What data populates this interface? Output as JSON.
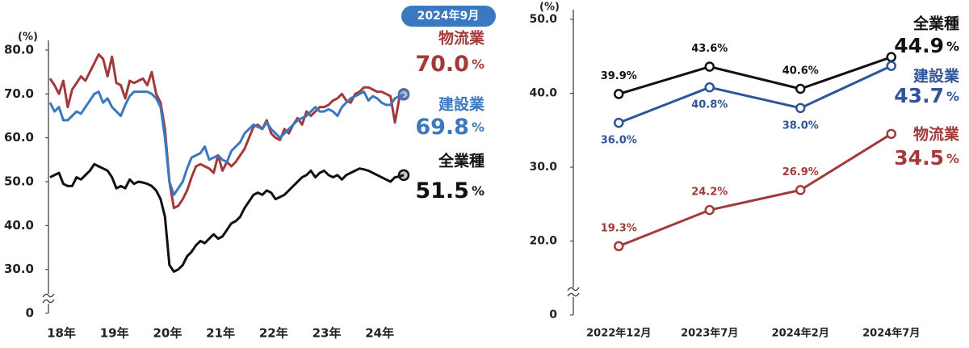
{
  "chart_data": [
    {
      "type": "line",
      "badge": "2024年9月",
      "ylabel": "(%)",
      "unit": "%",
      "categories": [
        "18年",
        null,
        null,
        null,
        null,
        null,
        null,
        null,
        null,
        null,
        null,
        null,
        "19年",
        null,
        null,
        null,
        null,
        null,
        null,
        null,
        null,
        null,
        null,
        null,
        "20年",
        null,
        null,
        null,
        null,
        null,
        null,
        null,
        null,
        null,
        null,
        null,
        "21年",
        null,
        null,
        null,
        null,
        null,
        null,
        null,
        null,
        null,
        null,
        null,
        "22年",
        null,
        null,
        null,
        null,
        null,
        null,
        null,
        null,
        null,
        null,
        null,
        "23年",
        null,
        null,
        null,
        null,
        null,
        null,
        null,
        null,
        null,
        null,
        null,
        "24年",
        null,
        null,
        null,
        null,
        null,
        null,
        null,
        null
      ],
      "ylim": [
        0,
        80
      ],
      "ybreak": [
        0,
        20
      ],
      "yticks": [
        0,
        {
          "value": 30,
          "label": "30.0"
        },
        {
          "value": 40,
          "label": "40.0"
        },
        {
          "value": 50,
          "label": "50.0"
        },
        {
          "value": 60,
          "label": "60.0"
        },
        {
          "value": 70,
          "label": "70.0"
        },
        {
          "value": 80,
          "label": "80.0"
        }
      ],
      "series": [
        {
          "name": "物流業",
          "color": "#a33a3a",
          "last_label": "70.0",
          "values": [
            73.5,
            72,
            70,
            73,
            67,
            71,
            72.5,
            74,
            73,
            75,
            77,
            79,
            78,
            74,
            78.5,
            72.5,
            72,
            69,
            73,
            72.5,
            73,
            73.5,
            72,
            75,
            70,
            68,
            62,
            50,
            44,
            44.5,
            46,
            48,
            51,
            53.5,
            54,
            53.5,
            53,
            52,
            56,
            52.5,
            54.5,
            53.5,
            54.5,
            56,
            57.5,
            60,
            62.5,
            63,
            62,
            64,
            61,
            60,
            59.5,
            62,
            61,
            63,
            64.5,
            63,
            66,
            65,
            66,
            67,
            67,
            67.5,
            68.5,
            69,
            70,
            68.5,
            68,
            70,
            70.5,
            71.5,
            71.5,
            71,
            70.5,
            70.5,
            70,
            69.5,
            63.5,
            69,
            70
          ]
        },
        {
          "name": "建設業",
          "color": "#3a78c0",
          "last_label": "69.8",
          "values": [
            68,
            66,
            67,
            64,
            64,
            65,
            66,
            65.5,
            67,
            68.5,
            70,
            70.5,
            68,
            69,
            67,
            66,
            65,
            67.5,
            69.5,
            70.5,
            70.5,
            70.5,
            70.5,
            70,
            69,
            67,
            60,
            50,
            47,
            48.5,
            50,
            53,
            55.5,
            56,
            56.5,
            58,
            55,
            55.5,
            56,
            55,
            54.5,
            57,
            58,
            59,
            61,
            62,
            63,
            62.5,
            62,
            63.5,
            62,
            61,
            60,
            61,
            62,
            63,
            64,
            64.5,
            65,
            66,
            67,
            66,
            66,
            66.5,
            66,
            65,
            67,
            68,
            69,
            69.5,
            70,
            70.5,
            68.5,
            69.5,
            69,
            68,
            67.5,
            67.5,
            69,
            69.5,
            69.8
          ]
        },
        {
          "name": "全業種",
          "color": "#111111",
          "last_label": "51.5",
          "values": [
            51,
            51.5,
            52,
            49.5,
            49,
            49,
            51,
            50.5,
            51.5,
            52.5,
            54,
            53.5,
            53,
            52.5,
            51,
            48.5,
            49,
            48.5,
            50.5,
            49.5,
            50,
            49.8,
            49.5,
            49,
            48,
            46,
            42,
            31,
            29.5,
            30,
            31,
            33,
            34,
            35.5,
            36.5,
            36,
            37,
            38,
            37,
            37.5,
            39,
            40.5,
            41,
            42,
            44,
            45.5,
            47,
            47.5,
            47,
            48,
            47.5,
            46,
            46.5,
            47,
            48,
            49,
            50,
            51,
            51.5,
            52.5,
            51,
            52,
            52.5,
            51.5,
            51,
            51.5,
            50.5,
            51.5,
            52,
            52.5,
            53,
            52.8,
            52.5,
            52,
            51.5,
            51,
            50.5,
            50,
            51,
            51.2,
            51.5
          ]
        }
      ]
    },
    {
      "type": "line",
      "ylabel": "(%)",
      "unit": "%",
      "categories": [
        "2022年12月",
        "2023年7月",
        "2024年2月",
        "2024年7月"
      ],
      "ylim": [
        0,
        50
      ],
      "ybreak": [
        0,
        10
      ],
      "yticks": [
        0,
        {
          "value": 20,
          "label": "20.0"
        },
        {
          "value": 30,
          "label": "30.0"
        },
        {
          "value": 40,
          "label": "40.0"
        },
        {
          "value": 50,
          "label": "50.0"
        }
      ],
      "series": [
        {
          "name": "全業種",
          "color": "#111111",
          "label_position": "above",
          "values": [
            39.9,
            43.6,
            40.6,
            44.9
          ],
          "value_labels": [
            "39.9%",
            "43.6%",
            "40.6%",
            "44.9"
          ]
        },
        {
          "name": "建設業",
          "color": "#2e5597",
          "label_position": "below",
          "values": [
            36.0,
            40.8,
            38.0,
            43.7
          ],
          "value_labels": [
            "36.0%",
            "40.8%",
            "38.0%",
            "43.7"
          ]
        },
        {
          "name": "物流業",
          "color": "#a33a3a",
          "label_position": "above",
          "values": [
            19.3,
            24.2,
            26.9,
            34.5
          ],
          "value_labels": [
            "19.3%",
            "24.2%",
            "26.9%",
            "34.5"
          ]
        }
      ]
    }
  ]
}
